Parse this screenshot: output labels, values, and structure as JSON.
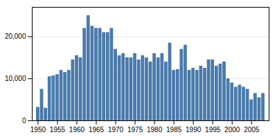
{
  "chart_data": {
    "type": "bar",
    "x": [
      1950,
      1951,
      1952,
      1953,
      1954,
      1955,
      1956,
      1957,
      1958,
      1959,
      1960,
      1961,
      1962,
      1963,
      1964,
      1965,
      1966,
      1967,
      1968,
      1969,
      1970,
      1971,
      1972,
      1973,
      1974,
      1975,
      1976,
      1977,
      1978,
      1979,
      1980,
      1981,
      1982,
      1983,
      1984,
      1985,
      1986,
      1987,
      1988,
      1989,
      1990,
      1991,
      1992,
      1993,
      1994,
      1995,
      1996,
      1997,
      1998,
      1999,
      2000,
      2001,
      2002,
      2003,
      2004,
      2005,
      2006,
      2007,
      2008
    ],
    "values": [
      3200,
      7500,
      3000,
      10500,
      10700,
      11000,
      12000,
      11500,
      12000,
      14500,
      15500,
      15000,
      22000,
      25000,
      22500,
      22000,
      22000,
      21000,
      21000,
      22000,
      17000,
      15500,
      16000,
      15000,
      15000,
      16000,
      14500,
      15500,
      15000,
      14000,
      16000,
      15000,
      16000,
      14000,
      18500,
      12000,
      12200,
      17000,
      18000,
      12000,
      12500,
      12000,
      13000,
      12500,
      14500,
      14500,
      13000,
      13500,
      14000,
      10000,
      9000,
      8000,
      8500,
      8000,
      7500,
      5000,
      6500,
      5500,
      6500
    ],
    "color": "#4a7aab",
    "xlim": [
      1948.5,
      2009.5
    ],
    "xticks": [
      1950,
      1955,
      1960,
      1965,
      1970,
      1975,
      1980,
      1985,
      1990,
      1995,
      2000,
      2005
    ],
    "ylim": [
      0,
      27000
    ],
    "yticks": [
      0,
      {
        "value": 10000,
        "label": "10,000"
      },
      {
        "value": 20000,
        "label": "20,000"
      }
    ],
    "grid": true
  }
}
